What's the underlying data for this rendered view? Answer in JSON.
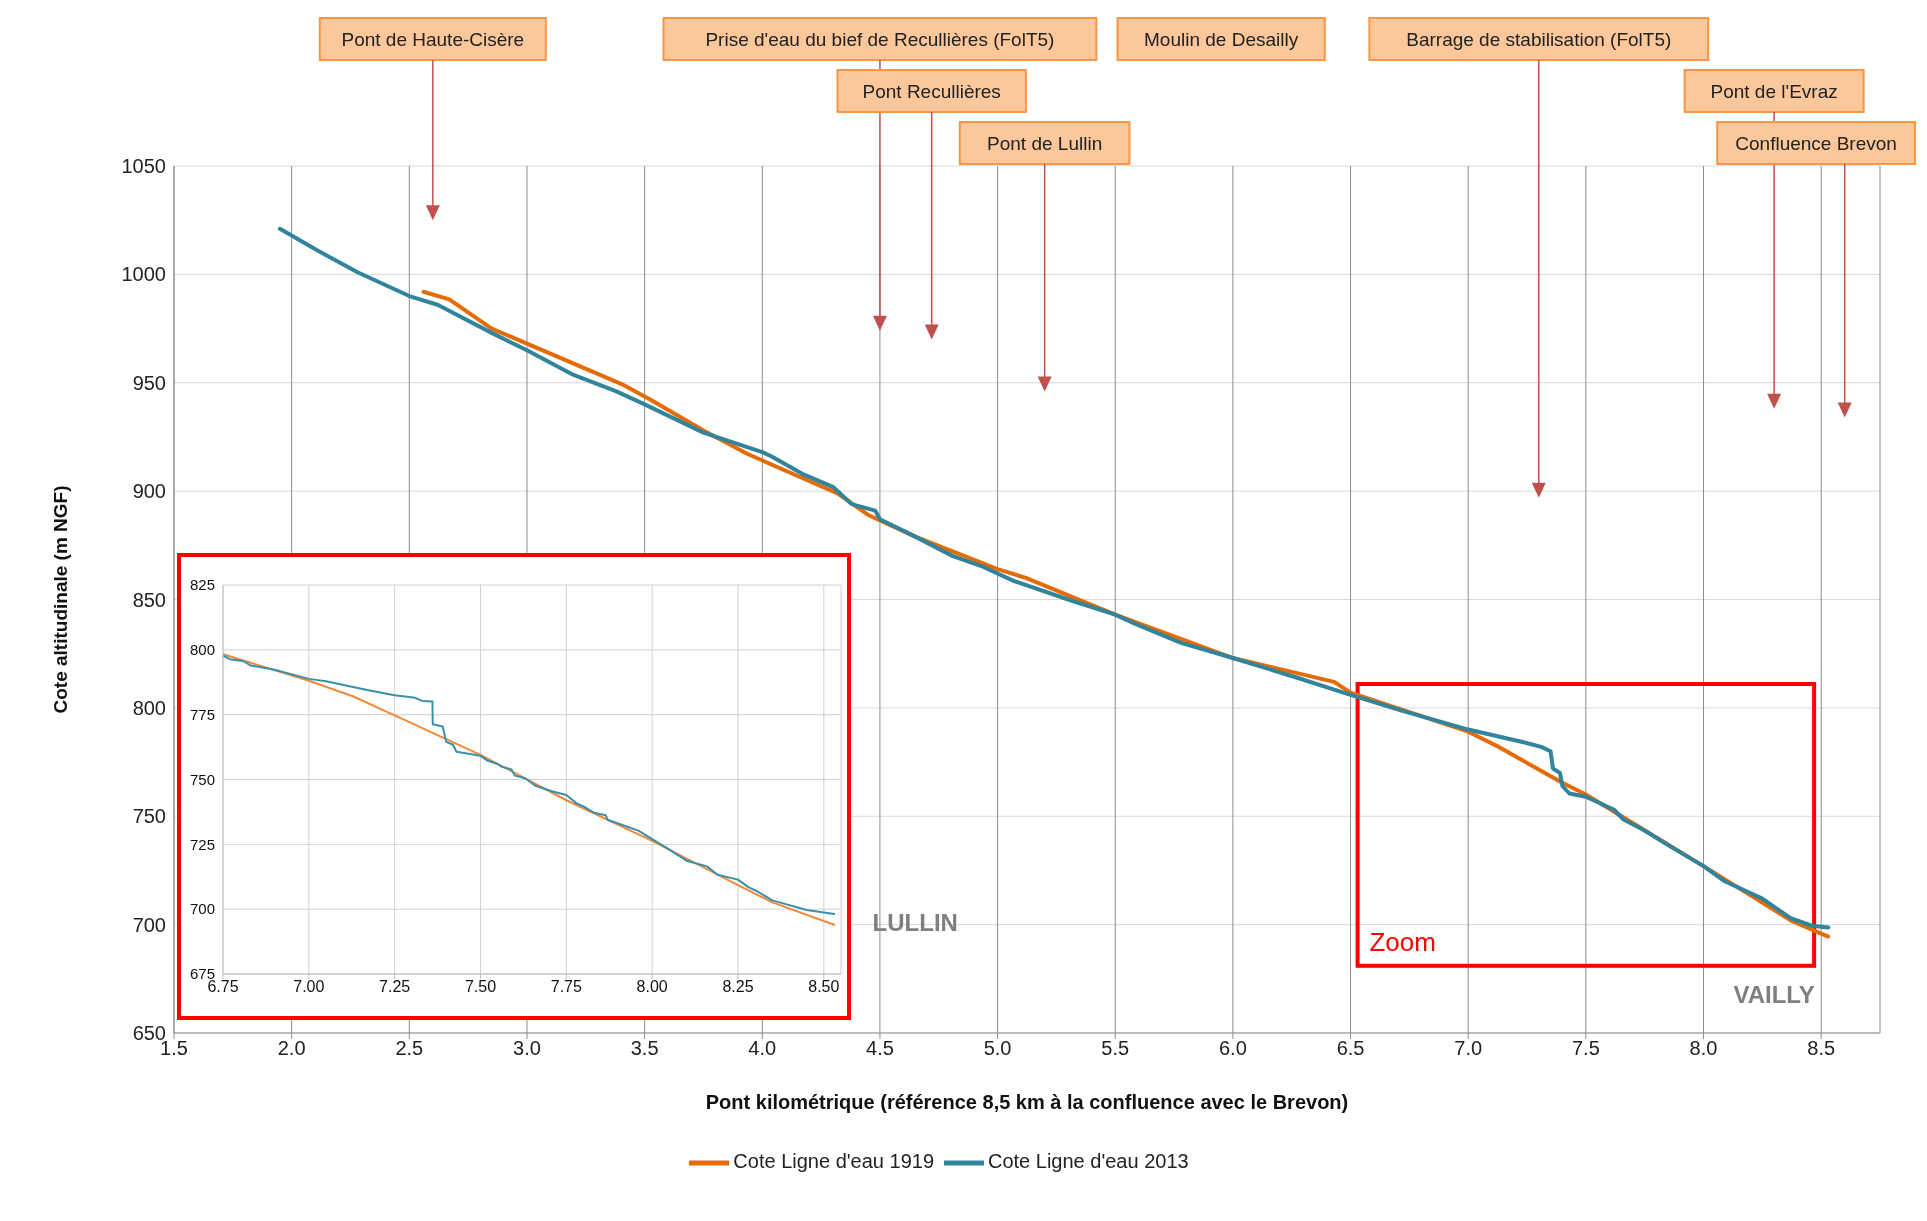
{
  "chart_data": [
    {
      "type": "line",
      "xlabel": "Pont kilométrique (référence  8,5 km à la confluence avec le Brevon)",
      "ylabel": "Cote altitudinale (m NGF)",
      "xlim": [
        1.5,
        8.75
      ],
      "xticks": [
        1.5,
        {
          "value": 2,
          "label": "2.0"
        },
        2.5,
        {
          "value": 3,
          "label": "3.0"
        },
        3.5,
        {
          "value": 4,
          "label": "4.0"
        },
        4.5,
        {
          "value": 5,
          "label": "5.0"
        },
        5.5,
        {
          "value": 6,
          "label": "6.0"
        },
        6.5,
        {
          "value": 7,
          "label": "7.0"
        },
        7.5,
        {
          "value": 8,
          "label": "8.0"
        },
        8.5
      ],
      "ylim": [
        650,
        1050
      ],
      "yticks": [
        650,
        700,
        750,
        800,
        850,
        900,
        950,
        1000,
        1050
      ],
      "grid": true,
      "legend": "bottom",
      "series": [
        {
          "name": "Cote Ligne d'eau 1919",
          "color": "#e36c09",
          "x": [
            2.56,
            2.67,
            2.85,
            3.41,
            3.52,
            3.75,
            3.94,
            4.32,
            4.45,
            4.65,
            5.0,
            5.12,
            5.5,
            6.0,
            6.43,
            6.5,
            7.0,
            7.13,
            7.39,
            7.5,
            8.0,
            8.37,
            8.53
          ],
          "values": [
            992,
            988.5,
            975,
            949,
            942.5,
            928,
            917,
            899,
            889,
            879,
            864,
            860,
            843,
            823,
            812,
            807,
            789,
            782,
            766,
            760,
            727,
            702,
            694.5
          ]
        },
        {
          "name": "Cote Ligne d'eau 2013",
          "color": "#31849b",
          "x": [
            1.95,
            2.11,
            2.28,
            2.5,
            2.62,
            2.85,
            3.0,
            3.19,
            3.38,
            3.5,
            3.75,
            4.0,
            4.04,
            4.17,
            4.3,
            4.38,
            4.48,
            4.5,
            4.65,
            4.81,
            4.94,
            5.07,
            5.3,
            5.5,
            5.58,
            5.78,
            6.0,
            6.27,
            6.5,
            6.71,
            7.0,
            7.24,
            7.31,
            7.35,
            7.36,
            7.39,
            7.4,
            7.43,
            7.5,
            7.62,
            7.66,
            7.74,
            7.86,
            8.0,
            8.09,
            8.15,
            8.25,
            8.37,
            8.46,
            8.53
          ],
          "values": [
            1021,
            1011,
            1001,
            990,
            986,
            973,
            965,
            954,
            946,
            940,
            927,
            918,
            916,
            908,
            902,
            894,
            891,
            887,
            879,
            870,
            865,
            858.5,
            850,
            843,
            839,
            830,
            823,
            814,
            806,
            799,
            790,
            784,
            782,
            780,
            772,
            770,
            764,
            760.5,
            759,
            753,
            748.5,
            744,
            736,
            727,
            720,
            717,
            712,
            703,
            699.5,
            698.7
          ]
        }
      ],
      "annotations": [
        "Pont de Haute-Cisère",
        "Prise d'eau du bief de Recullières (FolT5)",
        "Pont Recullières",
        "Pont de Lullin",
        "Moulin de Desailly",
        "Barrage de stabilisation (FolT5)",
        "Pont de l'Evraz",
        "Confluence Brevon",
        "Zoom",
        "LULLIN",
        "VAILLY"
      ]
    },
    {
      "type": "line",
      "xlim": [
        6.75,
        8.55
      ],
      "xticks": [
        {
          "value": 6.75,
          "label": "6.75"
        },
        {
          "value": 7,
          "label": "7.00"
        },
        {
          "value": 7.25,
          "label": "7.25"
        },
        {
          "value": 7.5,
          "label": "7.50"
        },
        {
          "value": 7.75,
          "label": "7.75"
        },
        {
          "value": 8,
          "label": "8.00"
        },
        {
          "value": 8.25,
          "label": "8.25"
        },
        {
          "value": 8.5,
          "label": "8.50"
        }
      ],
      "ylim": [
        675,
        825
      ],
      "yticks": [
        675,
        700,
        725,
        750,
        775,
        800,
        825
      ],
      "grid": true,
      "series": [
        {
          "color": "#f08a3a",
          "x": [
            6.75,
            7.0,
            7.13,
            7.25,
            7.5,
            7.75,
            8.0,
            8.25,
            8.35,
            8.53
          ],
          "values": [
            798.3,
            788.1,
            782,
            774.7,
            759.5,
            742,
            726.3,
            709.3,
            702.6,
            694
          ]
        },
        {
          "color": "#3a90a8",
          "x": [
            6.75,
            6.77,
            6.81,
            6.83,
            6.9,
            7.0,
            7.05,
            7.17,
            7.25,
            7.31,
            7.33,
            7.36,
            7.361,
            7.39,
            7.4,
            7.42,
            7.43,
            7.5,
            7.52,
            7.55,
            7.56,
            7.59,
            7.6,
            7.63,
            7.66,
            7.71,
            7.75,
            7.78,
            7.8,
            7.83,
            7.865,
            7.87,
            7.96,
            8.0,
            8.04,
            8.1,
            8.16,
            8.19,
            8.25,
            8.28,
            8.3,
            8.35,
            8.45,
            8.53
          ],
          "values": [
            797.8,
            796.4,
            795.6,
            794,
            792.3,
            788.8,
            787.9,
            784.5,
            782.5,
            781.5,
            780.3,
            780.1,
            771.3,
            770.4,
            764.5,
            763.4,
            760.7,
            759.2,
            757.3,
            756,
            755,
            753.9,
            751.5,
            750.5,
            747.6,
            745.4,
            744,
            740.8,
            739.6,
            737.2,
            736.2,
            734.5,
            730.3,
            727,
            723.8,
            718.7,
            716.5,
            713.3,
            711.4,
            708.5,
            707.3,
            703.4,
            699.7,
            698.1
          ]
        }
      ]
    }
  ]
}
